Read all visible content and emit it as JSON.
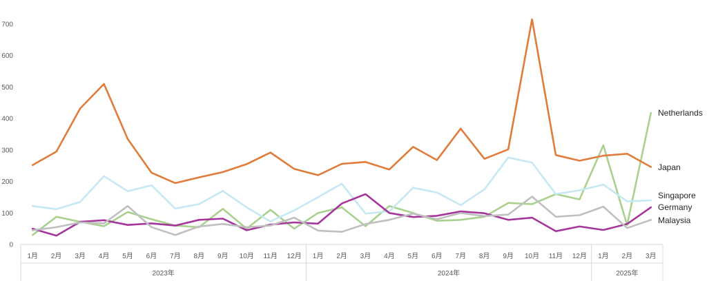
{
  "chart_data": {
    "type": "line",
    "title": "",
    "xlabel": "",
    "ylabel": "",
    "ylim": [
      0,
      700
    ],
    "yticks": [
      0,
      100,
      200,
      300,
      400,
      500,
      600,
      700
    ],
    "grid": false,
    "legend": "labels at line ends (right)",
    "x": [
      "1月",
      "2月",
      "3月",
      "4月",
      "5月",
      "6月",
      "7月",
      "8月",
      "9月",
      "10月",
      "11月",
      "12月",
      "1月",
      "2月",
      "3月",
      "4月",
      "5月",
      "6月",
      "7月",
      "8月",
      "9月",
      "10月",
      "11月",
      "12月",
      "1月",
      "2月",
      "3月"
    ],
    "year_groups": [
      {
        "label": "2023年",
        "count": 12
      },
      {
        "label": "2024年",
        "count": 12
      },
      {
        "label": "2025年",
        "count": 3
      }
    ],
    "series": [
      {
        "name": "Netherlands",
        "color": "#a9d18e",
        "values": [
          30,
          88,
          72,
          58,
          103,
          80,
          60,
          55,
          113,
          50,
          110,
          50,
          100,
          118,
          58,
          122,
          100,
          75,
          78,
          88,
          132,
          128,
          160,
          143,
          315,
          62,
          418
        ]
      },
      {
        "name": "Japan",
        "color": "#e07b39",
        "values": [
          252,
          295,
          432,
          510,
          335,
          228,
          195,
          213,
          230,
          255,
          292,
          240,
          220,
          256,
          262,
          238,
          310,
          268,
          368,
          272,
          302,
          715,
          284,
          266,
          282,
          288,
          246
        ]
      },
      {
        "name": "Singapore",
        "color": "#c5e8f3",
        "values": [
          122,
          112,
          135,
          217,
          169,
          188,
          114,
          128,
          170,
          118,
          73,
          108,
          150,
          193,
          98,
          105,
          180,
          165,
          125,
          175,
          276,
          260,
          160,
          172,
          190,
          137,
          140
        ]
      },
      {
        "name": "Germany",
        "color": "#a5359b",
        "values": [
          50,
          28,
          72,
          77,
          62,
          67,
          60,
          78,
          82,
          45,
          63,
          70,
          66,
          130,
          160,
          100,
          87,
          91,
          105,
          99,
          78,
          85,
          42,
          57,
          46,
          65,
          118
        ]
      },
      {
        "name": "Malaysia",
        "color": "#bfbfbf",
        "values": [
          45,
          55,
          70,
          67,
          122,
          55,
          30,
          57,
          65,
          55,
          60,
          85,
          44,
          40,
          65,
          78,
          98,
          80,
          100,
          90,
          95,
          152,
          88,
          93,
          120,
          52,
          78
        ]
      }
    ]
  }
}
